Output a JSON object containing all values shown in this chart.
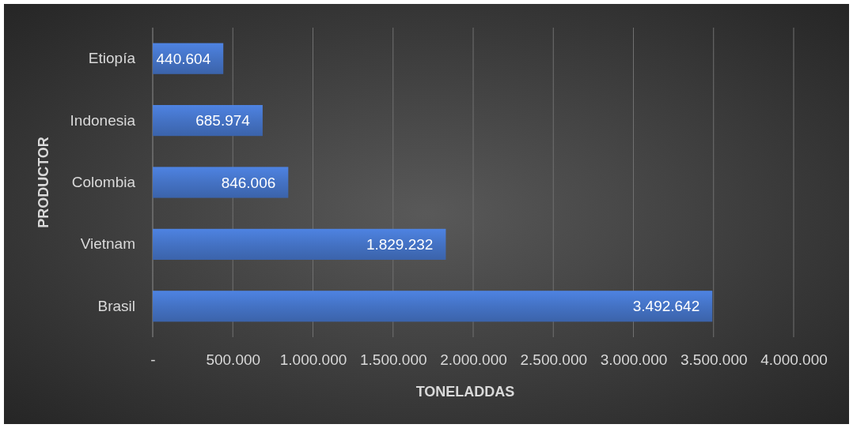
{
  "chart_data": {
    "type": "bar",
    "orientation": "horizontal",
    "xlabel": "TONELADDAS",
    "ylabel": "PRODUCTOR",
    "categories": [
      "Etiopía",
      "Indonesia",
      "Colombia",
      "Vietnam",
      "Brasil"
    ],
    "values": [
      440604,
      685974,
      846006,
      1829232,
      3492642
    ],
    "value_labels": [
      "440.604",
      "685.974",
      "846.006",
      "1.829.232",
      "3.492.642"
    ],
    "color": "#4472c4",
    "xlim": [
      0,
      4000000
    ],
    "xticks": [
      {
        "value": 0,
        "label": "-"
      },
      {
        "value": 500000,
        "label": "500.000"
      },
      {
        "value": 1000000,
        "label": "1.000.000"
      },
      {
        "value": 1500000,
        "label": "1.500.000"
      },
      {
        "value": 2000000,
        "label": "2.000.000"
      },
      {
        "value": 2500000,
        "label": "2.500.000"
      },
      {
        "value": 3000000,
        "label": "3.000.000"
      },
      {
        "value": 3500000,
        "label": "3.500.000"
      },
      {
        "value": 4000000,
        "label": "4.000.000"
      }
    ],
    "grid": "x"
  }
}
